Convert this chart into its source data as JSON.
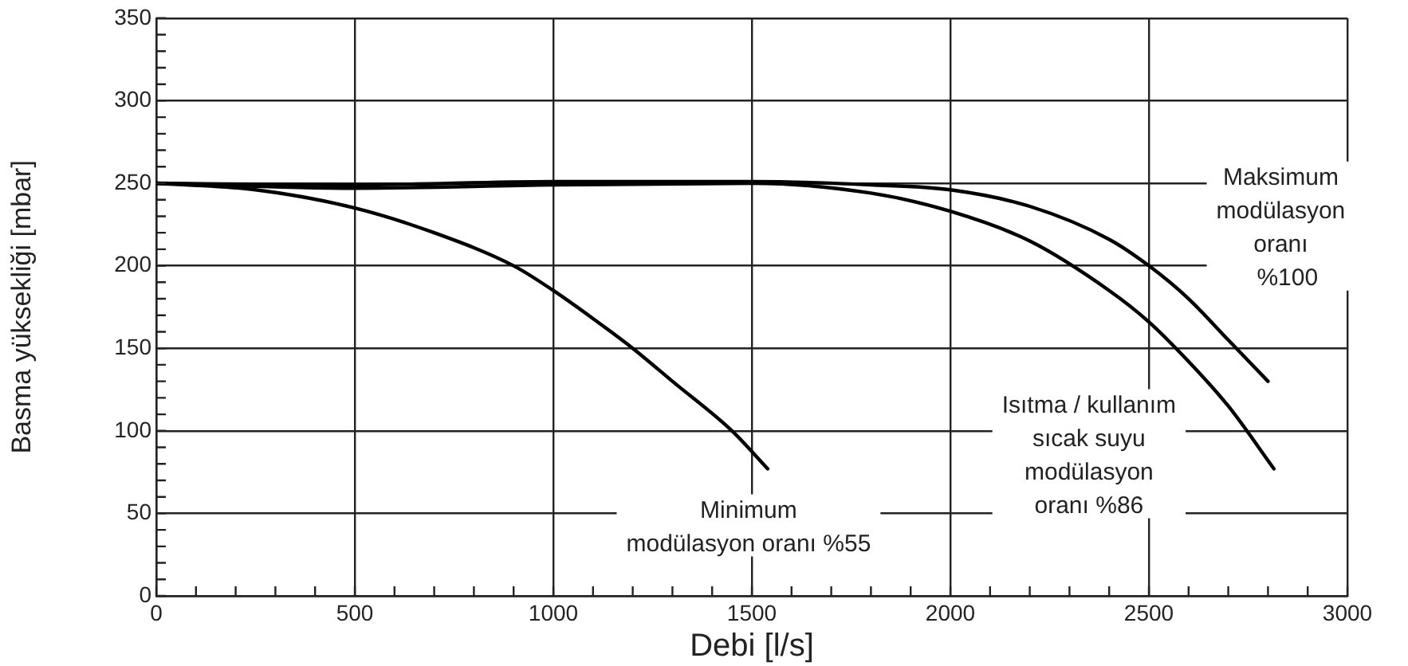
{
  "chart_data": {
    "type": "line",
    "xlabel": "Debi [l/s]",
    "ylabel": "Basma yüksekliği [mbar]",
    "xlim": [
      0,
      3000
    ],
    "ylim": [
      0,
      350
    ],
    "xticks": [
      0,
      {
        "value": 100,
        "label": null
      },
      {
        "value": 200,
        "label": null
      },
      {
        "value": 300,
        "label": null
      },
      {
        "value": 400,
        "label": null
      },
      500,
      {
        "value": 600,
        "label": null
      },
      {
        "value": 700,
        "label": null
      },
      {
        "value": 800,
        "label": null
      },
      {
        "value": 900,
        "label": null
      },
      1000,
      {
        "value": 1100,
        "label": null
      },
      {
        "value": 1200,
        "label": null
      },
      {
        "value": 1300,
        "label": null
      },
      {
        "value": 1400,
        "label": null
      },
      1500,
      {
        "value": 1600,
        "label": null
      },
      {
        "value": 1700,
        "label": null
      },
      {
        "value": 1800,
        "label": null
      },
      {
        "value": 1900,
        "label": null
      },
      2000,
      {
        "value": 2100,
        "label": null
      },
      {
        "value": 2200,
        "label": null
      },
      {
        "value": 2300,
        "label": null
      },
      {
        "value": 2400,
        "label": null
      },
      2500,
      {
        "value": 2600,
        "label": null
      },
      {
        "value": 2700,
        "label": null
      },
      {
        "value": 2800,
        "label": null
      },
      {
        "value": 2900,
        "label": null
      },
      3000
    ],
    "yticks": [
      0,
      {
        "value": 10,
        "label": null
      },
      {
        "value": 20,
        "label": null
      },
      {
        "value": 30,
        "label": null
      },
      {
        "value": 40,
        "label": null
      },
      50,
      {
        "value": 60,
        "label": null
      },
      {
        "value": 70,
        "label": null
      },
      {
        "value": 80,
        "label": null
      },
      {
        "value": 90,
        "label": null
      },
      100,
      {
        "value": 110,
        "label": null
      },
      {
        "value": 120,
        "label": null
      },
      {
        "value": 130,
        "label": null
      },
      {
        "value": 140,
        "label": null
      },
      150,
      {
        "value": 160,
        "label": null
      },
      {
        "value": 170,
        "label": null
      },
      {
        "value": 180,
        "label": null
      },
      {
        "value": 190,
        "label": null
      },
      200,
      {
        "value": 210,
        "label": null
      },
      {
        "value": 220,
        "label": null
      },
      {
        "value": 230,
        "label": null
      },
      {
        "value": 240,
        "label": null
      },
      250,
      {
        "value": 260,
        "label": null
      },
      {
        "value": 270,
        "label": null
      },
      {
        "value": 280,
        "label": null
      },
      {
        "value": 290,
        "label": null
      },
      300,
      {
        "value": 310,
        "label": null
      },
      {
        "value": 320,
        "label": null
      },
      {
        "value": 330,
        "label": null
      },
      {
        "value": 340,
        "label": null
      },
      350
    ],
    "grid": true,
    "legend": false,
    "marker": "none",
    "line_style": "solid",
    "series": [
      {
        "name": "Minimum\nmodülasyon oranı %55",
        "color": "#000000",
        "x": [
          0,
          250,
          500,
          700,
          900,
          1000,
          1100,
          1200,
          1300,
          1450,
          1540
        ],
        "values": [
          250,
          246,
          235,
          220,
          200,
          185,
          168,
          150,
          130,
          100,
          77
        ]
      },
      {
        "name": "Maksimum\nmodülasyon\noranı\n  %100",
        "color": "#000000",
        "x": [
          0,
          500,
          1000,
          1500,
          1800,
          2000,
          2200,
          2400,
          2500,
          2600,
          2700,
          2800
        ],
        "values": [
          250,
          249,
          251,
          251,
          249,
          246,
          236,
          216,
          200,
          180,
          155,
          130
        ]
      },
      {
        "name": "Isıtma / kullanım\nsıcak suyu\nmodülasyon\noranı %86",
        "color": "#000000",
        "x": [
          0,
          500,
          1000,
          1500,
          1800,
          2000,
          2200,
          2400,
          2500,
          2600,
          2700,
          2815
        ],
        "values": [
          250,
          247,
          249,
          250,
          244,
          233,
          215,
          185,
          166,
          142,
          115,
          77
        ]
      }
    ]
  }
}
